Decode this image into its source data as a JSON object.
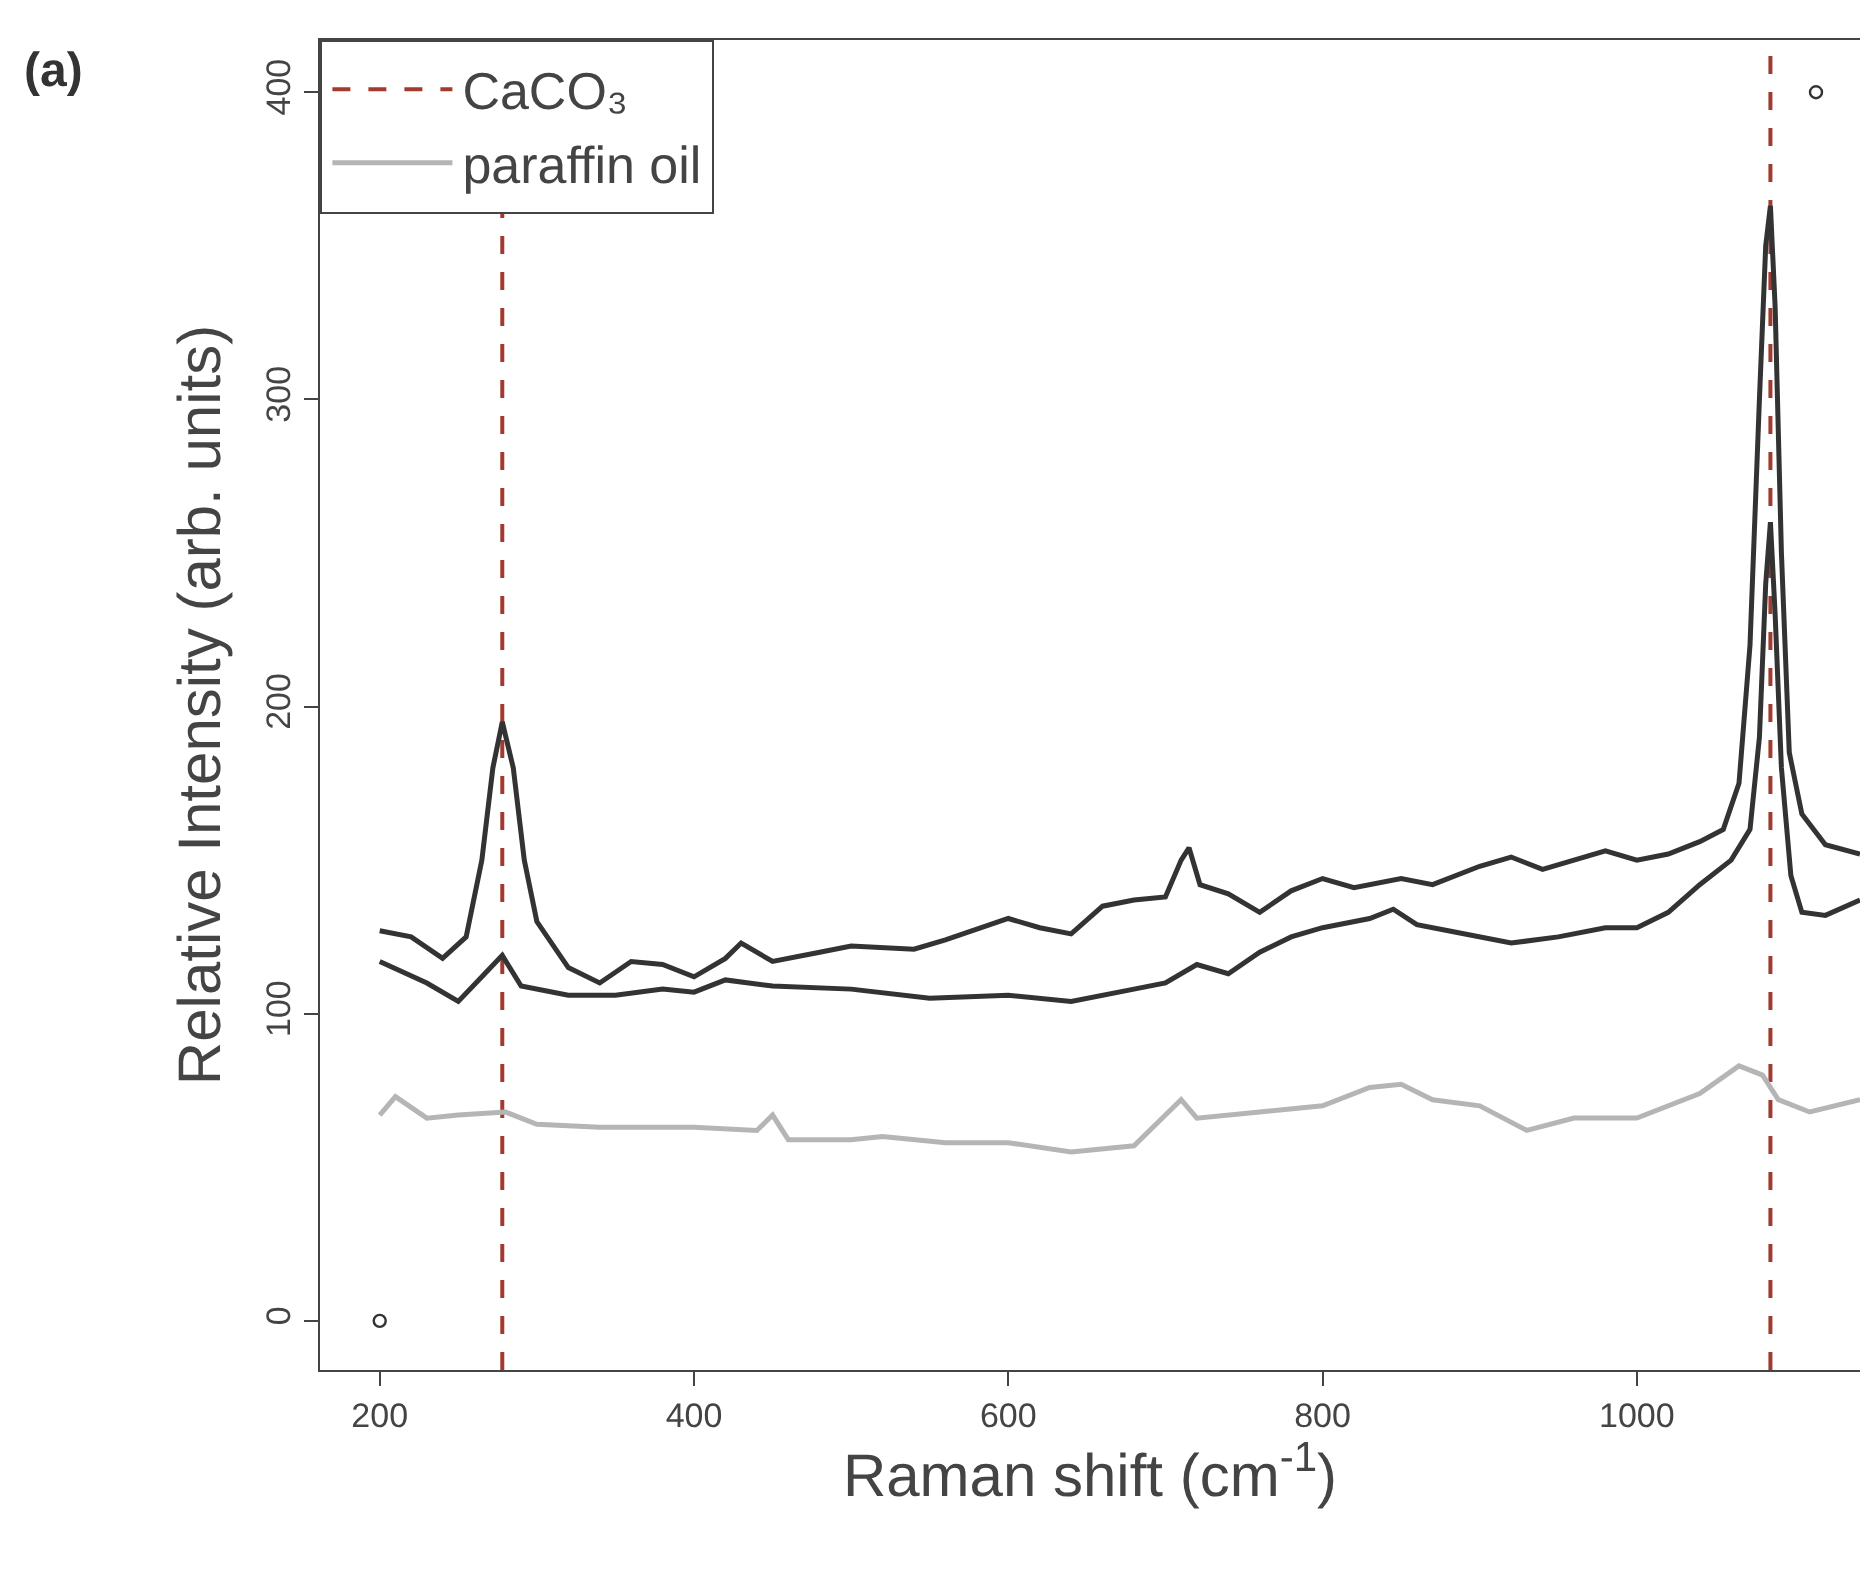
{
  "chart_data": {
    "type": "line",
    "xlabel": "Raman shift (cm$^{-1}$)",
    "ylabel": "Relative Intensity (arb. units)",
    "annotations": [
      "(a)"
    ],
    "xlim": [
      162,
      1142
    ],
    "xticks": [
      200,
      400,
      600,
      800,
      1000
    ],
    "ylim": [
      -16,
      417
    ],
    "yticks": [
      0,
      100,
      200,
      300,
      400
    ],
    "legend": "top left",
    "line_style": "solid",
    "marker": "none",
    "ref_lines": [
      {
        "axis": "x",
        "value": 278,
        "label": "CaCO₃",
        "color": "#a33a30",
        "line_style": "dashed"
      },
      {
        "axis": "x",
        "value": 1085,
        "color": "#a33a30",
        "line_style": "dashed"
      }
    ],
    "series": [
      {
        "color": "#333333",
        "x": [
          200,
          220,
          240,
          255,
          265,
          272,
          278,
          285,
          292,
          300,
          320,
          340,
          360,
          380,
          400,
          420,
          430,
          450,
          480,
          500,
          540,
          560,
          600,
          620,
          640,
          660,
          680,
          700,
          710,
          715,
          722,
          740,
          760,
          780,
          800,
          820,
          850,
          870,
          900,
          920,
          940,
          980,
          1000,
          1020,
          1040,
          1055,
          1065,
          1072,
          1078,
          1082,
          1085,
          1088,
          1092,
          1097,
          1105,
          1120,
          1142
        ],
        "values": [
          127,
          125,
          118,
          125,
          150,
          180,
          195,
          180,
          150,
          130,
          115,
          110,
          117,
          116,
          112,
          118,
          123,
          117,
          120,
          122,
          121,
          124,
          131,
          128,
          126,
          135,
          137,
          138,
          150,
          154,
          142,
          139,
          133,
          140,
          144,
          141,
          144,
          142,
          148,
          151,
          147,
          153,
          150,
          152,
          156,
          160,
          175,
          220,
          300,
          350,
          363,
          330,
          250,
          185,
          165,
          155,
          152
        ]
      },
      {
        "color": "#333333",
        "x": [
          200,
          230,
          250,
          265,
          278,
          290,
          320,
          350,
          380,
          400,
          420,
          450,
          500,
          550,
          600,
          640,
          680,
          700,
          720,
          740,
          760,
          780,
          800,
          830,
          845,
          860,
          880,
          920,
          950,
          980,
          1000,
          1020,
          1040,
          1060,
          1072,
          1078,
          1082,
          1085,
          1088,
          1092,
          1098,
          1105,
          1120,
          1142
        ],
        "values": [
          117,
          110,
          104,
          112,
          119,
          109,
          106,
          106,
          108,
          107,
          111,
          109,
          108,
          105,
          106,
          104,
          108,
          110,
          116,
          113,
          120,
          125,
          128,
          131,
          134,
          129,
          127,
          123,
          125,
          128,
          128,
          133,
          142,
          150,
          160,
          190,
          240,
          260,
          230,
          180,
          145,
          133,
          132,
          137
        ]
      },
      {
        "name": "paraffin oil",
        "color": "#b5b5b5",
        "x": [
          200,
          210,
          230,
          250,
          280,
          300,
          340,
          400,
          440,
          450,
          460,
          500,
          520,
          560,
          600,
          640,
          680,
          700,
          710,
          720,
          760,
          800,
          830,
          850,
          870,
          900,
          930,
          960,
          1000,
          1040,
          1065,
          1080,
          1090,
          1110,
          1142
        ],
        "values": [
          67,
          73,
          66,
          67,
          68,
          64,
          63,
          63,
          62,
          67,
          59,
          59,
          60,
          58,
          58,
          55,
          57,
          67,
          72,
          66,
          68,
          70,
          76,
          77,
          72,
          70,
          62,
          66,
          66,
          74,
          83,
          80,
          72,
          68,
          72
        ]
      },
      {
        "type": "scatter",
        "marker": "circle",
        "color": "#333333",
        "x": [
          200,
          1114
        ],
        "values": [
          0,
          400
        ]
      }
    ]
  }
}
